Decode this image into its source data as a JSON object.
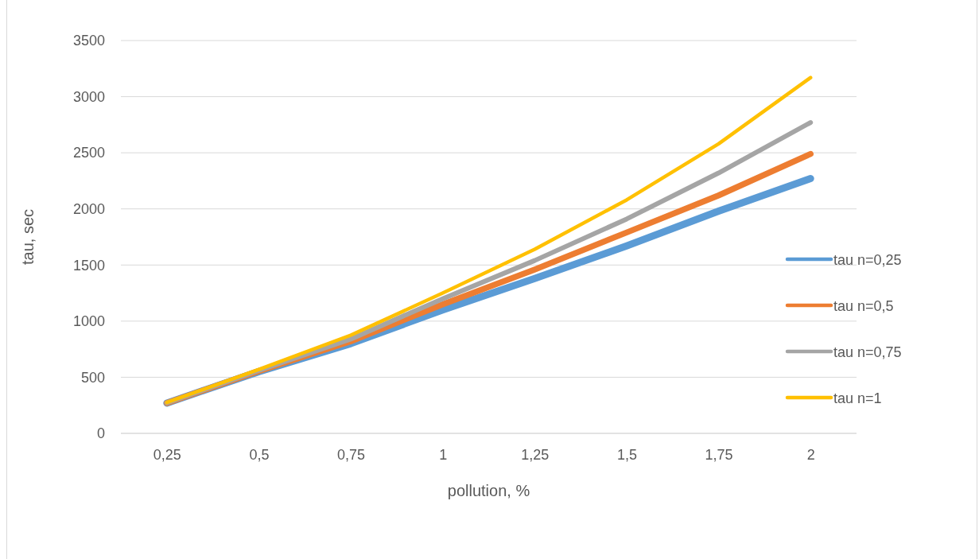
{
  "chart_data": {
    "type": "line",
    "xlabel": "pollution, %",
    "ylabel": "tau, sec",
    "categories": [
      "0,25",
      "0,5",
      "0,75",
      "1",
      "1,25",
      "1,5",
      "1,75",
      "2"
    ],
    "ylim": [
      0,
      3500
    ],
    "yticks": [
      0,
      500,
      1000,
      1500,
      2000,
      2500,
      3000,
      3500
    ],
    "grid": "y",
    "legend": "right",
    "marker": "none",
    "line_style": "solid",
    "series": [
      {
        "name": "tau n=0,25",
        "color": "#5b9bd5",
        "values": [
          270,
          550,
          800,
          1100,
          1380,
          1670,
          1980,
          2270
        ]
      },
      {
        "name": "tau n=0,5",
        "color": "#ed7d31",
        "values": [
          270,
          555,
          820,
          1150,
          1460,
          1790,
          2120,
          2490
        ]
      },
      {
        "name": "tau n=0,75",
        "color": "#a5a5a5",
        "values": [
          272,
          560,
          840,
          1200,
          1540,
          1910,
          2320,
          2770
        ]
      },
      {
        "name": "tau n=1",
        "color": "#ffc000",
        "values": [
          275,
          570,
          875,
          1250,
          1640,
          2080,
          2580,
          3170
        ]
      }
    ]
  }
}
